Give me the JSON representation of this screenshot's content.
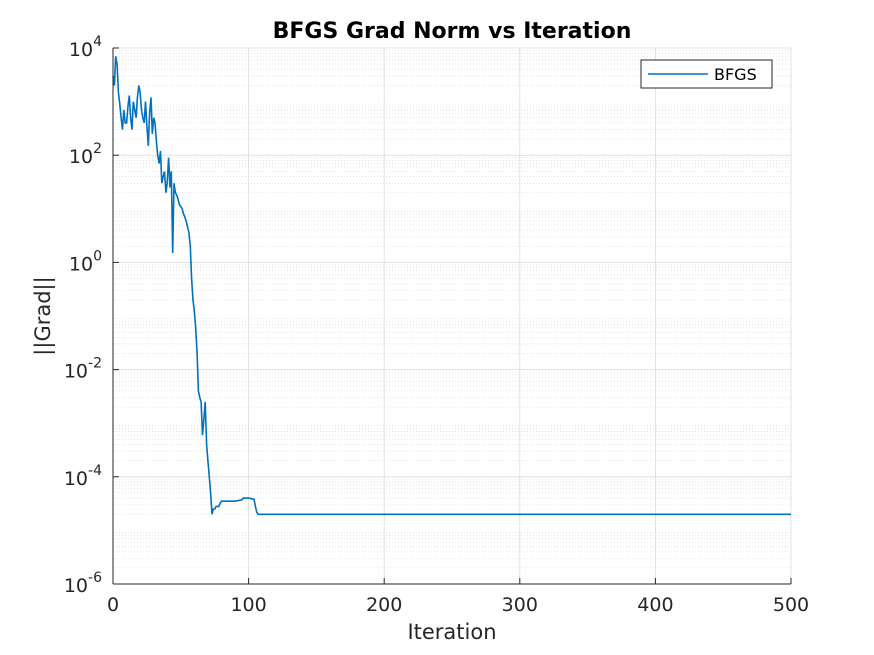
{
  "chart_data": {
    "type": "line",
    "title": "BFGS Grad Norm vs Iteration",
    "xlabel": "Iteration",
    "ylabel": "||Grad||",
    "xlim": [
      0,
      500
    ],
    "ylim": [
      1e-06,
      10000.0
    ],
    "yscale": "log",
    "grid": true,
    "minor_grid": true,
    "legend": "top-right",
    "x_ticks": [
      "0",
      "100",
      "200",
      "300",
      "400",
      "500"
    ],
    "y_ticks": [
      {
        "base": "10",
        "exp": "-6",
        "value": 1e-06
      },
      {
        "base": "10",
        "exp": "-4",
        "value": 0.0001
      },
      {
        "base": "10",
        "exp": "-2",
        "value": 0.01
      },
      {
        "base": "10",
        "exp": "0",
        "value": 1
      },
      {
        "base": "10",
        "exp": "2",
        "value": 100
      },
      {
        "base": "10",
        "exp": "4",
        "value": 10000
      }
    ],
    "series": [
      {
        "name": "BFGS",
        "color": "#0072bd",
        "x": [
          0,
          1,
          2,
          3,
          4,
          5,
          6,
          7,
          8,
          9,
          10,
          11,
          12,
          13,
          14,
          15,
          16,
          17,
          18,
          19,
          20,
          21,
          22,
          23,
          24,
          25,
          26,
          27,
          28,
          29,
          30,
          31,
          32,
          33,
          34,
          35,
          36,
          37,
          38,
          39,
          40,
          41,
          42,
          43,
          44,
          45,
          46,
          47,
          48,
          49,
          50,
          51,
          52,
          53,
          54,
          55,
          56,
          57,
          58,
          59,
          60,
          61,
          62,
          63,
          64,
          65,
          66,
          67,
          68,
          69,
          70,
          71,
          72,
          73,
          74,
          75,
          76,
          77,
          78,
          79,
          80,
          85,
          90,
          95,
          96,
          100,
          104,
          105,
          106,
          107,
          108,
          110,
          150,
          200,
          250,
          300,
          350,
          400,
          450,
          500
        ],
        "values": [
          3000,
          2000,
          7000,
          5000,
          1500,
          900,
          500,
          300,
          700,
          400,
          400,
          800,
          1300,
          500,
          300,
          1000,
          700,
          500,
          1200,
          2000,
          1500,
          700,
          500,
          400,
          1000,
          350,
          150,
          600,
          1200,
          250,
          500,
          400,
          180,
          100,
          70,
          120,
          30,
          40,
          50,
          20,
          30,
          90,
          25,
          50,
          1.5,
          30,
          20,
          18,
          15,
          12,
          11,
          10,
          8,
          7,
          5.8,
          4.6,
          3.6,
          2,
          0.5,
          0.2,
          0.12,
          0.06,
          0.02,
          0.004,
          0.003,
          0.0025,
          0.0006,
          0.0012,
          0.0025,
          0.0004,
          0.0002,
          0.0001,
          5e-05,
          2e-05,
          2.5e-05,
          2.5e-05,
          2.8e-05,
          2.8e-05,
          2.8e-05,
          3.2e-05,
          3.5e-05,
          3.5e-05,
          3.5e-05,
          3.7e-05,
          4e-05,
          4e-05,
          3.8e-05,
          2.8e-05,
          2.2e-05,
          2e-05,
          2e-05,
          2e-05,
          2e-05,
          2e-05,
          2e-05,
          2e-05,
          2e-05,
          2e-05,
          2e-05,
          2e-05
        ]
      }
    ]
  }
}
